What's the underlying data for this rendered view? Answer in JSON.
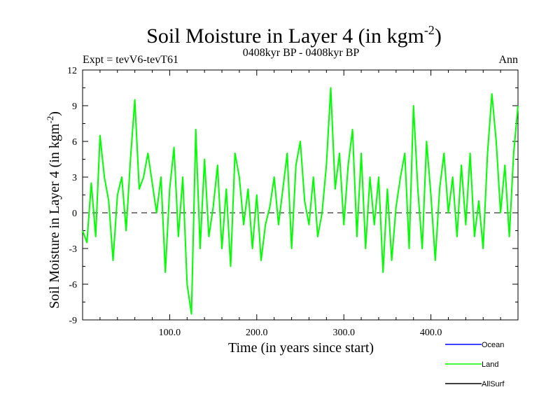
{
  "chart_data": {
    "type": "line",
    "title": "Soil Moisture in Layer 4 (in kgm",
    "title_sup": "-2",
    "title_end": ")",
    "subtitle_left": "Expt = tevV6-tevT61",
    "subtitle_center": "0408kyr BP - 0408kyr BP",
    "subtitle_right": "Ann",
    "xlabel": "Time (in years since start)",
    "ylabel": "Soil Moisture in Layer 4 (in kgm",
    "ylabel_sup": "-2",
    "ylabel_end": ")",
    "xlim": [
      0,
      500
    ],
    "ylim": [
      -9,
      12
    ],
    "xticks": [
      100,
      200,
      300,
      400
    ],
    "xtick_labels": [
      "100.0",
      "200.0",
      "300.0",
      "400.0"
    ],
    "yticks": [
      -9,
      -6,
      -3,
      0,
      3,
      6,
      9,
      12
    ],
    "ytick_labels": [
      "-9",
      "-6",
      "-3",
      "0",
      "3",
      "6",
      "9",
      "12"
    ],
    "zero_line": true,
    "legend": {
      "placement": "bottom-right",
      "entries": [
        {
          "name": "Ocean",
          "color": "#0000ff"
        },
        {
          "name": "Land",
          "color": "#00ff00"
        },
        {
          "name": "AllSurf",
          "color": "#000000"
        }
      ]
    },
    "series": [
      {
        "name": "Land",
        "color": "#00ff00",
        "x": [
          0,
          5,
          10,
          15,
          20,
          25,
          30,
          35,
          40,
          45,
          50,
          55,
          60,
          65,
          70,
          75,
          80,
          85,
          90,
          95,
          100,
          105,
          110,
          115,
          120,
          125,
          130,
          135,
          140,
          145,
          150,
          155,
          160,
          165,
          170,
          175,
          180,
          185,
          190,
          195,
          200,
          205,
          210,
          215,
          220,
          225,
          230,
          235,
          240,
          245,
          250,
          255,
          260,
          265,
          270,
          275,
          280,
          285,
          290,
          295,
          300,
          305,
          310,
          315,
          320,
          325,
          330,
          335,
          340,
          345,
          350,
          355,
          360,
          365,
          370,
          375,
          380,
          385,
          390,
          395,
          400,
          405,
          410,
          415,
          420,
          425,
          430,
          435,
          440,
          445,
          450,
          455,
          460,
          465,
          470,
          475,
          480,
          485,
          490,
          495,
          500
        ],
        "y": [
          -1.5,
          -2.5,
          2.5,
          -2,
          6.5,
          3,
          1,
          -4,
          1.5,
          3,
          -1.5,
          4.5,
          9.5,
          2,
          3,
          5,
          2.5,
          0,
          3,
          -5,
          2,
          5.5,
          -2,
          3,
          -6,
          -8.5,
          7,
          -3,
          4.5,
          -2,
          0.5,
          4,
          -3,
          2,
          -4.5,
          5,
          3,
          -1,
          2,
          -3,
          1.5,
          -4,
          -1,
          0.5,
          3,
          -1,
          2,
          5,
          -3,
          4,
          6,
          1,
          -1,
          3,
          -2,
          0,
          4,
          10.5,
          2,
          5,
          -1,
          4,
          7,
          -2,
          5,
          -3,
          3,
          -1,
          3,
          -5,
          2,
          -4,
          0.5,
          3,
          5,
          -3,
          9,
          2,
          -3,
          6,
          1.5,
          -4,
          2,
          5,
          0,
          3,
          -2,
          4,
          -1,
          5,
          -2,
          1,
          -3,
          5,
          10,
          6,
          0,
          4,
          -2,
          5,
          9
        ]
      }
    ]
  }
}
